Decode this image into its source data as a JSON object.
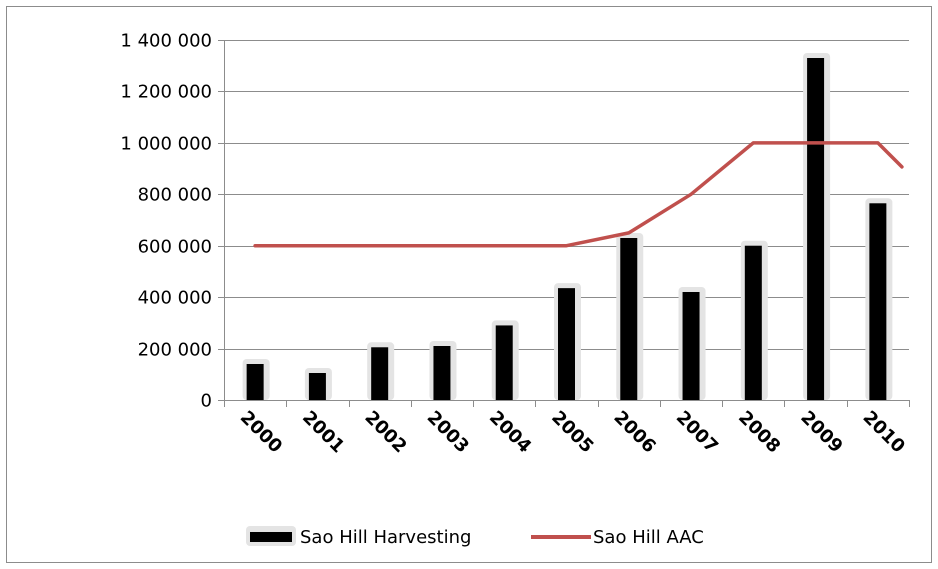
{
  "chart_data": {
    "type": "bar",
    "categories": [
      "2000",
      "2001",
      "2002",
      "2003",
      "2004",
      "2005",
      "2006",
      "2007",
      "2008",
      "2009",
      "2010"
    ],
    "series": [
      {
        "name": "Sao Hill Harvesting",
        "type": "bar",
        "color": "#000000",
        "values": [
          140000,
          105000,
          205000,
          210000,
          290000,
          435000,
          630000,
          420000,
          600000,
          1330000,
          765000
        ]
      },
      {
        "name": "Sao Hill AAC",
        "type": "line",
        "color": "#c0504d",
        "values": [
          600000,
          600000,
          600000,
          600000,
          600000,
          600000,
          650000,
          800000,
          1000000,
          1000000,
          1000000
        ]
      }
    ],
    "yticks": [
      0,
      200000,
      400000,
      600000,
      800000,
      1000000,
      1200000,
      1400000
    ],
    "ytick_labels": [
      "0",
      "200 000",
      "400 000",
      "600 000",
      "800 000",
      "1 000 000",
      "1 200 000",
      "1 400 000"
    ],
    "ylim": [
      0,
      1400000
    ],
    "grid": "horizontal",
    "legend_position": "bottom",
    "title": "",
    "xlabel": "",
    "ylabel": ""
  }
}
